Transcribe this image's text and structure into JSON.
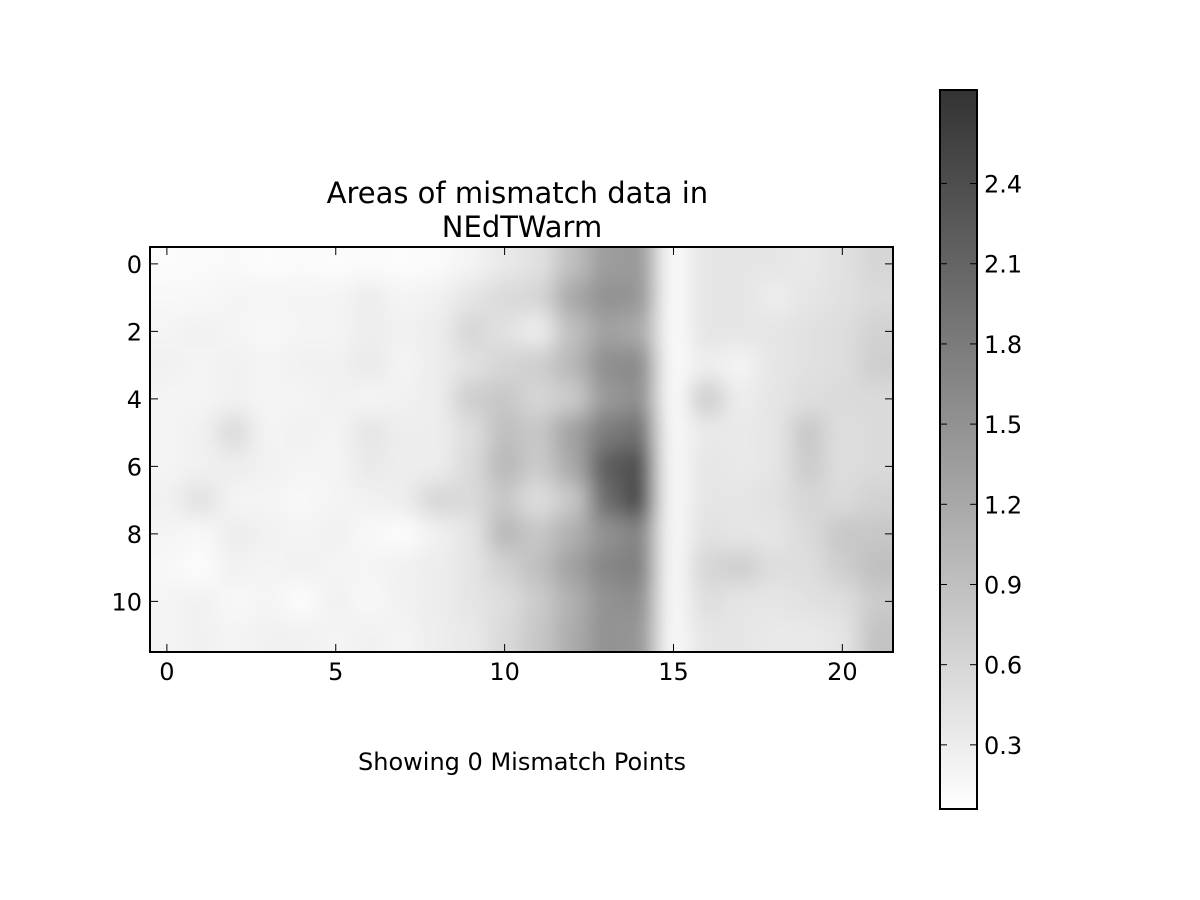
{
  "chart_data": {
    "type": "heatmap",
    "title": "Areas of mismatch data in\nNEdTWarm",
    "xlabel": "Showing 0 Mismatch Points",
    "ylabel": "",
    "x_ticks": [
      0,
      5,
      10,
      15,
      20
    ],
    "y_ticks": [
      0,
      2,
      4,
      6,
      8,
      10
    ],
    "x_ticks_text": [
      "0",
      "5",
      "10",
      "15",
      "20"
    ],
    "y_ticks_text": [
      "0",
      "2",
      "4",
      "6",
      "8",
      "10"
    ],
    "xlim": [
      -0.5,
      21.5
    ],
    "ylim": [
      11.5,
      -0.5
    ],
    "n_rows": 12,
    "n_cols": 22,
    "colormap": "gray_r",
    "colorbar": {
      "vmin": 0.06,
      "vmax": 2.75,
      "ticks": [
        0.3,
        0.6,
        0.9,
        1.2,
        1.5,
        1.8,
        2.1,
        2.4
      ],
      "ticks_text": [
        "0.3",
        "0.6",
        "0.9",
        "1.2",
        "1.5",
        "1.8",
        "2.1",
        "2.4"
      ],
      "color_low": "#ffffff",
      "color_high": "#000000"
    },
    "interpolation": "bilinear",
    "values": [
      [
        0.1,
        0.12,
        0.14,
        0.1,
        0.12,
        0.1,
        0.12,
        0.1,
        0.12,
        0.2,
        0.35,
        0.45,
        0.9,
        1.35,
        1.4,
        0.12,
        0.4,
        0.4,
        0.4,
        0.35,
        0.45,
        0.6
      ],
      [
        0.15,
        0.15,
        0.2,
        0.2,
        0.2,
        0.2,
        0.3,
        0.2,
        0.25,
        0.4,
        0.55,
        0.6,
        1.2,
        1.5,
        1.45,
        0.12,
        0.4,
        0.4,
        0.3,
        0.4,
        0.45,
        0.55
      ],
      [
        0.2,
        0.25,
        0.2,
        0.15,
        0.2,
        0.2,
        0.3,
        0.25,
        0.3,
        0.6,
        0.45,
        0.3,
        0.9,
        1.3,
        1.2,
        0.12,
        0.4,
        0.4,
        0.4,
        0.45,
        0.5,
        0.65
      ],
      [
        0.25,
        0.2,
        0.25,
        0.2,
        0.25,
        0.25,
        0.35,
        0.2,
        0.3,
        0.45,
        0.6,
        0.7,
        1.0,
        1.55,
        1.6,
        0.12,
        0.3,
        0.2,
        0.4,
        0.45,
        0.5,
        0.7
      ],
      [
        0.2,
        0.2,
        0.25,
        0.2,
        0.2,
        0.25,
        0.2,
        0.25,
        0.3,
        0.7,
        0.8,
        0.6,
        0.75,
        1.4,
        1.55,
        0.12,
        0.7,
        0.3,
        0.4,
        0.5,
        0.55,
        0.55
      ],
      [
        0.2,
        0.25,
        0.55,
        0.2,
        0.25,
        0.2,
        0.4,
        0.3,
        0.3,
        0.5,
        0.9,
        0.8,
        1.3,
        1.8,
        1.95,
        0.15,
        0.35,
        0.35,
        0.4,
        0.8,
        0.5,
        0.55
      ],
      [
        0.2,
        0.25,
        0.3,
        0.25,
        0.2,
        0.2,
        0.35,
        0.3,
        0.3,
        0.55,
        1.0,
        0.75,
        1.2,
        2.2,
        2.4,
        0.15,
        0.4,
        0.35,
        0.4,
        0.75,
        0.5,
        0.55
      ],
      [
        0.25,
        0.45,
        0.2,
        0.2,
        0.15,
        0.2,
        0.25,
        0.3,
        0.6,
        0.55,
        0.8,
        0.5,
        0.8,
        2.0,
        2.45,
        0.15,
        0.4,
        0.4,
        0.45,
        0.6,
        0.55,
        0.65
      ],
      [
        0.2,
        0.15,
        0.3,
        0.25,
        0.2,
        0.25,
        0.15,
        0.1,
        0.25,
        0.4,
        1.0,
        0.8,
        1.1,
        1.5,
        1.7,
        0.15,
        0.45,
        0.4,
        0.4,
        0.55,
        0.8,
        0.8
      ],
      [
        0.15,
        0.1,
        0.25,
        0.2,
        0.25,
        0.2,
        0.2,
        0.25,
        0.3,
        0.4,
        0.65,
        0.9,
        1.3,
        1.65,
        1.75,
        0.15,
        0.6,
        0.7,
        0.5,
        0.5,
        0.7,
        0.9
      ],
      [
        0.2,
        0.25,
        0.15,
        0.2,
        0.1,
        0.25,
        0.15,
        0.25,
        0.3,
        0.4,
        0.5,
        0.75,
        1.1,
        1.5,
        1.55,
        0.15,
        0.5,
        0.4,
        0.4,
        0.45,
        0.5,
        0.75
      ],
      [
        0.2,
        0.25,
        0.2,
        0.25,
        0.25,
        0.2,
        0.25,
        0.2,
        0.3,
        0.35,
        0.55,
        0.8,
        1.15,
        1.5,
        1.45,
        0.15,
        0.4,
        0.4,
        0.35,
        0.35,
        0.4,
        0.85
      ]
    ]
  }
}
